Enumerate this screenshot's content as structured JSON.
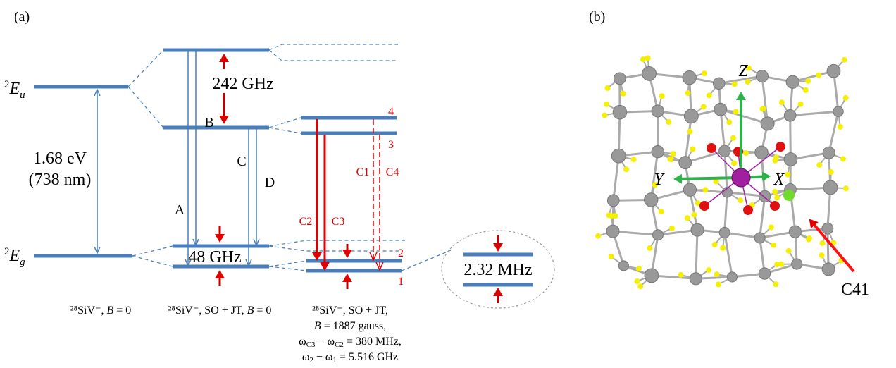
{
  "panel_a": {
    "label": "(a)",
    "levels": {
      "Eu": {
        "sup": "2",
        "main": "E",
        "sub": "u"
      },
      "Eg": {
        "sup": "2",
        "main": "E",
        "sub": "g"
      }
    },
    "gap": [
      "1.68 eV",
      "(738 nm)"
    ],
    "splitting_upper": "242 GHz",
    "splitting_lower": "48 GHz",
    "splitting_zoom": "2.32 MHz",
    "transitions": {
      "A": "A",
      "B": "B",
      "C": "C",
      "D": "D",
      "C1": "C1",
      "C2": "C2",
      "C3": "C3",
      "C4": "C4"
    },
    "state_numbers": [
      "1",
      "2",
      "3",
      "4"
    ],
    "captions": {
      "left": [
        "²⁸SiV⁻, ",
        "B",
        " = 0"
      ],
      "middle": [
        "²⁸SiV⁻, SO + JT, ",
        "B",
        " = 0"
      ],
      "right": [
        [
          "²⁸SiV⁻, SO + JT,"
        ],
        [
          "B",
          " = 1887 gauss,"
        ],
        [
          "ω",
          "C3",
          " − ω",
          "C2",
          " = 380 MHz,"
        ],
        [
          "ω",
          "2",
          " − ω",
          "1",
          " = 5.516 GHz"
        ]
      ]
    }
  },
  "panel_b": {
    "label": "(b)",
    "axes": {
      "x": "X",
      "y": "Y",
      "z": "Z"
    },
    "atom_label": "C41"
  }
}
